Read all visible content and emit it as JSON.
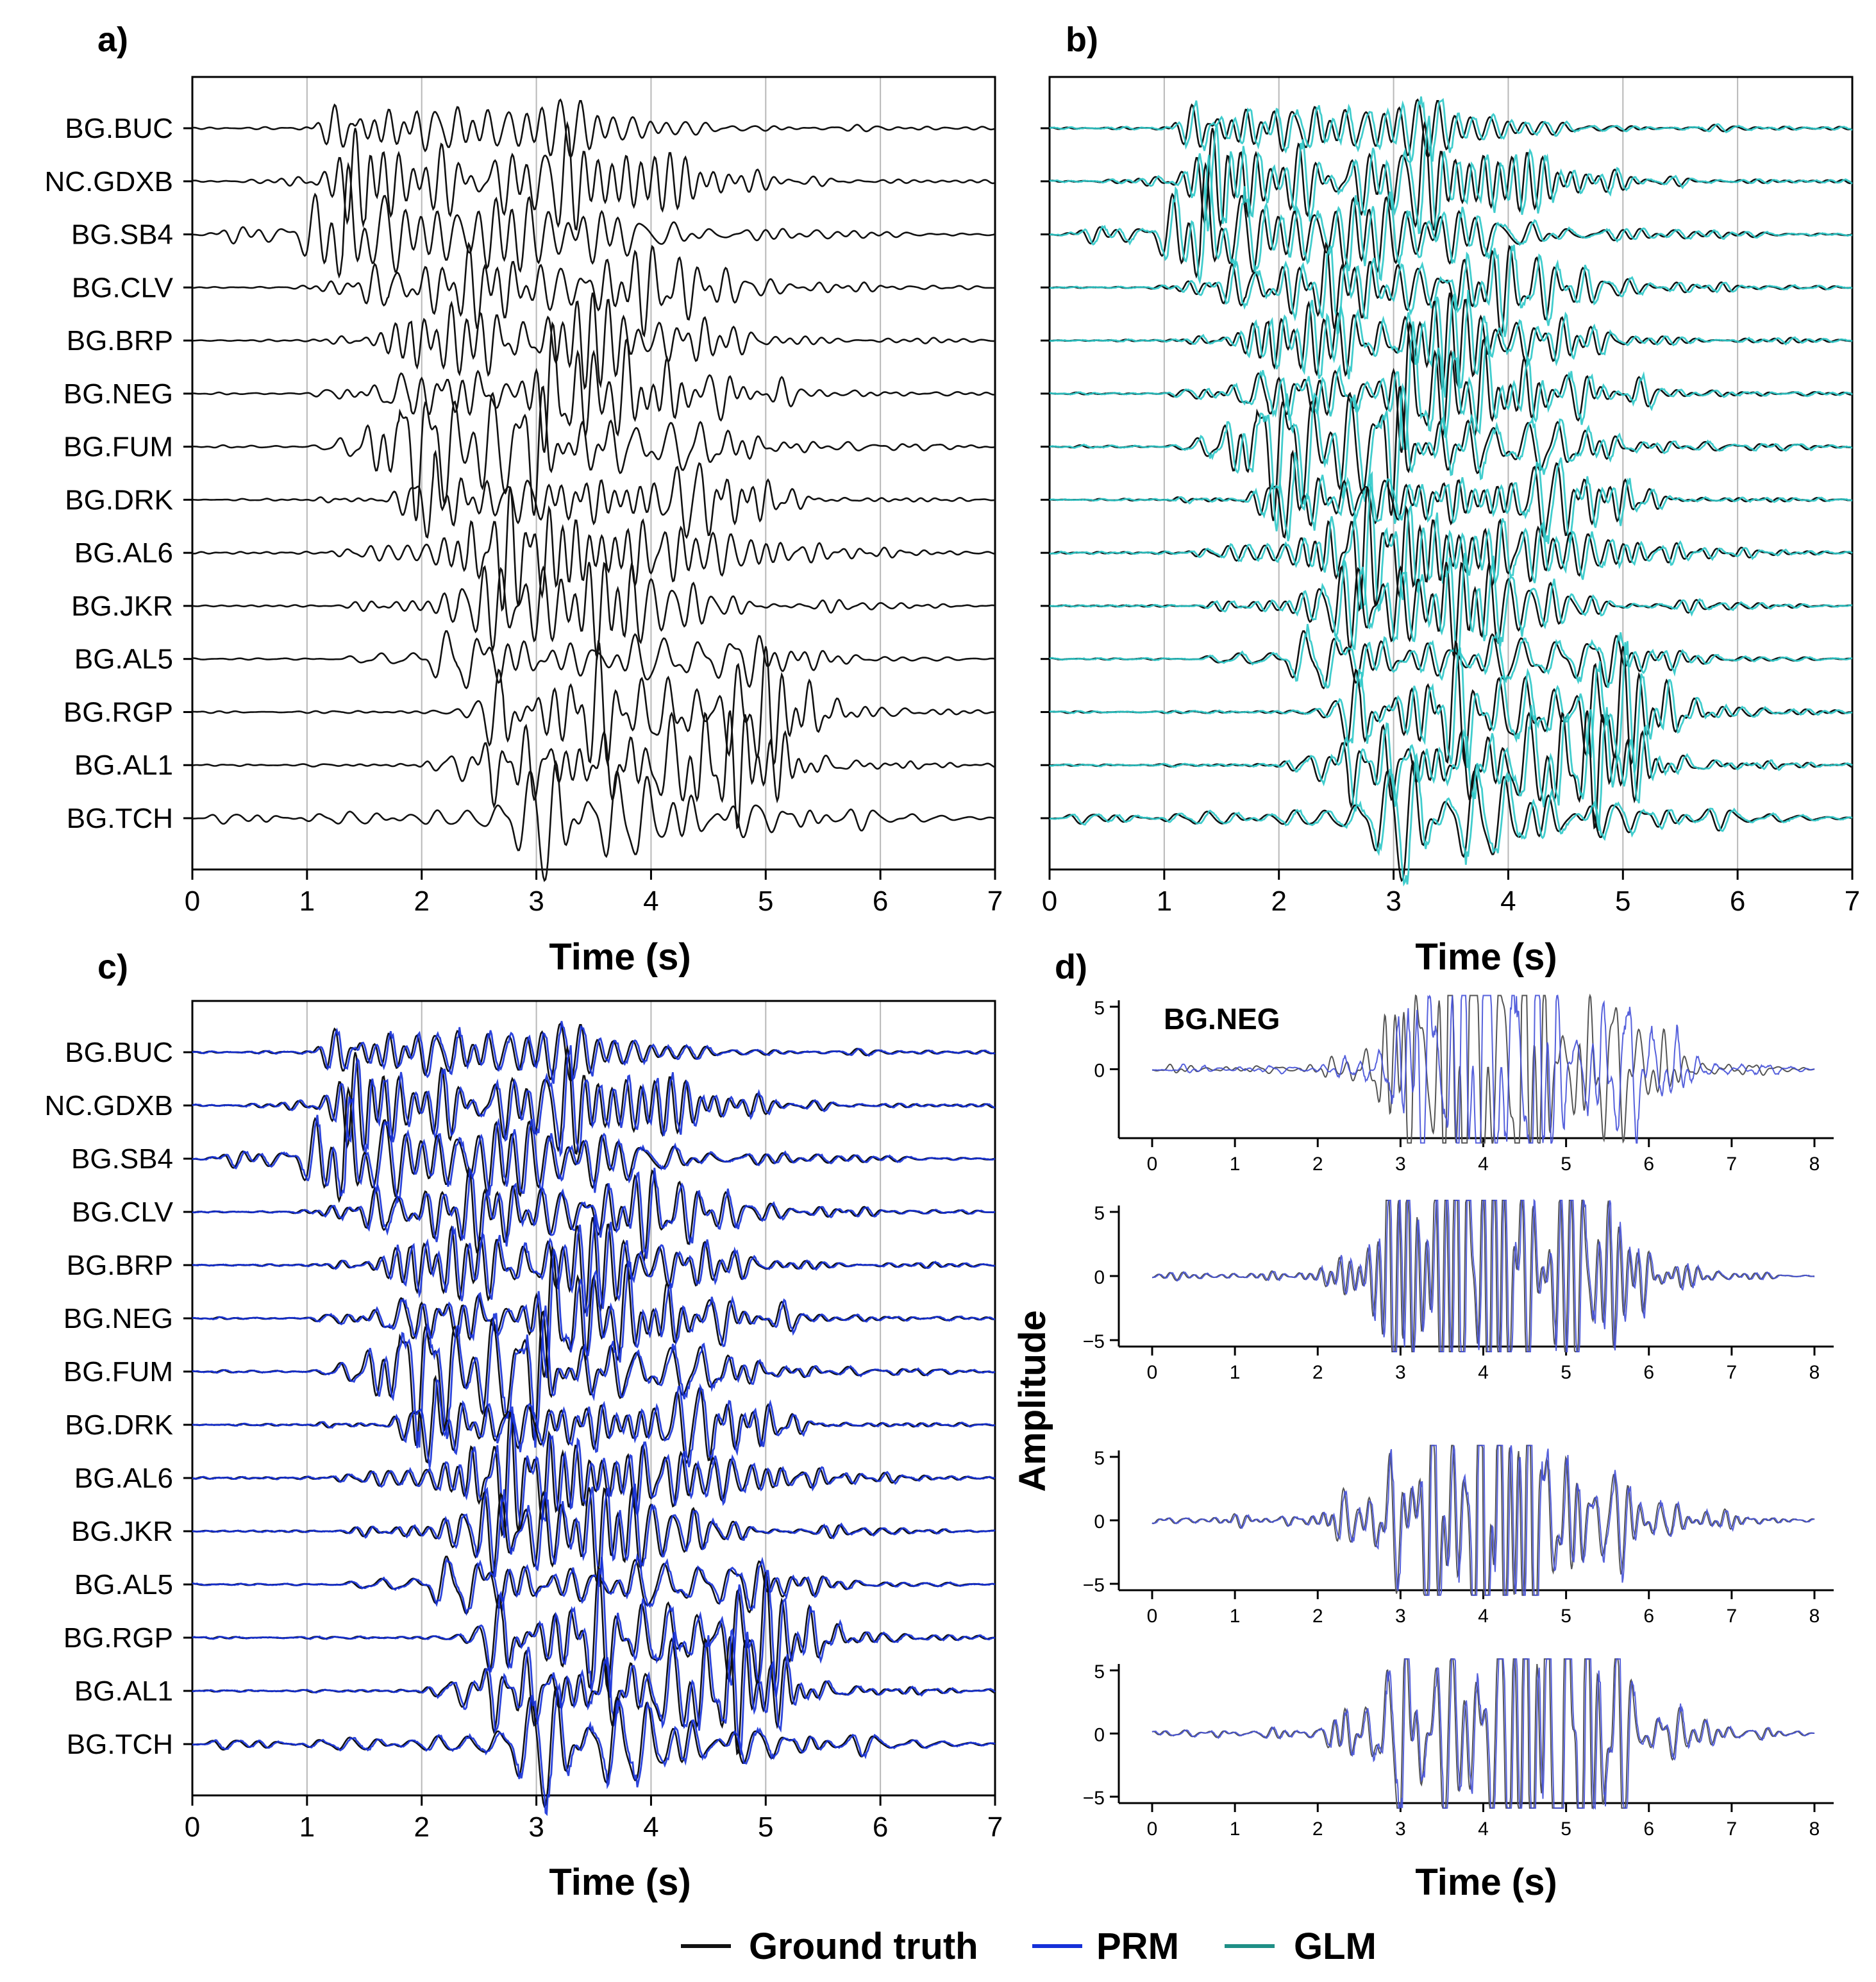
{
  "figure": {
    "panel_letters": [
      "a)",
      "b)",
      "c)",
      "d)"
    ],
    "legend": [
      {
        "label": "Ground truth",
        "color": "#111111"
      },
      {
        "label": "PRM",
        "color": "#1530d8"
      },
      {
        "label": "GLM",
        "color": "#1f8f86"
      }
    ]
  },
  "colors": {
    "ground_truth": "#111111",
    "prm": "#1530d8",
    "glm_trace": "#2cc8c8",
    "grid": "#b8b8b8",
    "inset_truth": "#555555",
    "inset_prm": "#4450d8"
  },
  "chart_data": [
    {
      "type": "line",
      "panel": "a)",
      "xlabel": "Time (s)",
      "xlim": [
        0,
        7
      ],
      "xticks": [
        0,
        1,
        2,
        3,
        4,
        5,
        6,
        7
      ],
      "grid": "vertical",
      "stations": [
        "BG.BUC",
        "NC.GDXB",
        "BG.SB4",
        "BG.CLV",
        "BG.BRP",
        "BG.NEG",
        "BG.FUM",
        "BG.DRK",
        "BG.AL6",
        "BG.JKR",
        "BG.AL5",
        "BG.RGP",
        "BG.AL1",
        "BG.TCH"
      ],
      "onsets_s": [
        0.9,
        1.1,
        0.0,
        0.8,
        1.0,
        1.0,
        1.0,
        1.0,
        1.1,
        1.3,
        1.2,
        2.3,
        1.9,
        0.0
      ],
      "peak_times_s": [
        1.4,
        1.5,
        1.3,
        1.7,
        1.9,
        1.9,
        1.8,
        2.1,
        2.4,
        2.3,
        2.3,
        2.7,
        2.6,
        3.0
      ],
      "series": [
        {
          "name": "Ground truth",
          "color_key": "ground_truth"
        }
      ]
    },
    {
      "type": "line",
      "panel": "b)",
      "xlabel": "Time (s)",
      "xlim": [
        0,
        7
      ],
      "xticks": [
        0,
        1,
        2,
        3,
        4,
        5,
        6,
        7
      ],
      "grid": "vertical",
      "stations": [
        "BG.BUC",
        "NC.GDXB",
        "BG.SB4",
        "BG.CLV",
        "BG.BRP",
        "BG.NEG",
        "BG.FUM",
        "BG.DRK",
        "BG.AL6",
        "BG.JKR",
        "BG.AL5",
        "BG.RGP",
        "BG.AL1",
        "BG.TCH"
      ],
      "series": [
        {
          "name": "Ground truth",
          "color_key": "ground_truth"
        },
        {
          "name": "GLM",
          "color_key": "glm_trace"
        }
      ]
    },
    {
      "type": "line",
      "panel": "c)",
      "xlabel": "Time (s)",
      "xlim": [
        0,
        7
      ],
      "xticks": [
        0,
        1,
        2,
        3,
        4,
        5,
        6,
        7
      ],
      "grid": "vertical",
      "stations": [
        "BG.BUC",
        "NC.GDXB",
        "BG.SB4",
        "BG.CLV",
        "BG.BRP",
        "BG.NEG",
        "BG.FUM",
        "BG.DRK",
        "BG.AL6",
        "BG.JKR",
        "BG.AL5",
        "BG.RGP",
        "BG.AL1",
        "BG.TCH"
      ],
      "series": [
        {
          "name": "Ground truth",
          "color_key": "ground_truth"
        },
        {
          "name": "PRM",
          "color_key": "prm"
        }
      ]
    },
    {
      "type": "line",
      "panel": "d)",
      "station": "BG.NEG",
      "xlabel": "Time (s)",
      "ylabel": "Amplitude",
      "xlim": [
        0,
        8
      ],
      "xticks": [
        0,
        1,
        2,
        3,
        4,
        5,
        6,
        7,
        8
      ],
      "subplots": [
        {
          "ylim": [
            -5,
            5
          ],
          "yticks": [
            5,
            0
          ],
          "peak_amplitude": 5.0
        },
        {
          "ylim": [
            -5,
            5
          ],
          "yticks": [
            5,
            0,
            -5
          ],
          "peak_amplitude": 5.5
        },
        {
          "ylim": [
            -5,
            5
          ],
          "yticks": [
            5,
            0,
            -5
          ],
          "peak_amplitude": 5.6
        },
        {
          "ylim": [
            -5,
            5
          ],
          "yticks": [
            5,
            0,
            -5
          ],
          "peak_amplitude": 5.4
        }
      ],
      "series": [
        {
          "name": "Ground truth",
          "color_key": "inset_truth"
        },
        {
          "name": "PRM",
          "color_key": "inset_prm"
        }
      ]
    }
  ]
}
